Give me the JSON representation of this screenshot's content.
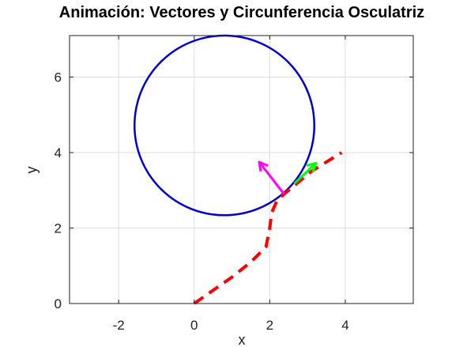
{
  "chart_data": {
    "type": "line",
    "title": "Animación: Vectores y Circunferencia Osculatriz",
    "xlabel": "x",
    "ylabel": "y",
    "xlim": [
      -3.3,
      5.8
    ],
    "ylim": [
      0,
      7.1
    ],
    "xticks": [
      -2,
      0,
      2,
      4
    ],
    "yticks": [
      0,
      2,
      4,
      6
    ],
    "grid": true,
    "colors": {
      "curve": "#ff0000",
      "circle": "#0000d0",
      "tangent": "#00ff00",
      "normal": "#ff00ff",
      "grid": "#dddddd",
      "axes": "#222222"
    },
    "series": [
      {
        "style": "dashed",
        "x": [
          0.0,
          0.5,
          1.0,
          1.5,
          1.9,
          2.0,
          2.05,
          2.2,
          2.5,
          2.8,
          3.1,
          3.5,
          3.9
        ],
        "y": [
          0.0,
          0.35,
          0.7,
          1.1,
          1.5,
          2.0,
          2.4,
          2.75,
          3.0,
          3.25,
          3.5,
          3.75,
          4.0
        ]
      }
    ],
    "circle": {
      "cx": 0.8,
      "cy": 4.72,
      "r": 2.38
    },
    "vectors": [
      {
        "kind": "tangent",
        "from": [
          2.65,
          3.18
        ],
        "to": [
          3.22,
          3.72
        ]
      },
      {
        "kind": "normal",
        "from": [
          2.38,
          2.9
        ],
        "to": [
          1.72,
          3.75
        ]
      }
    ]
  }
}
